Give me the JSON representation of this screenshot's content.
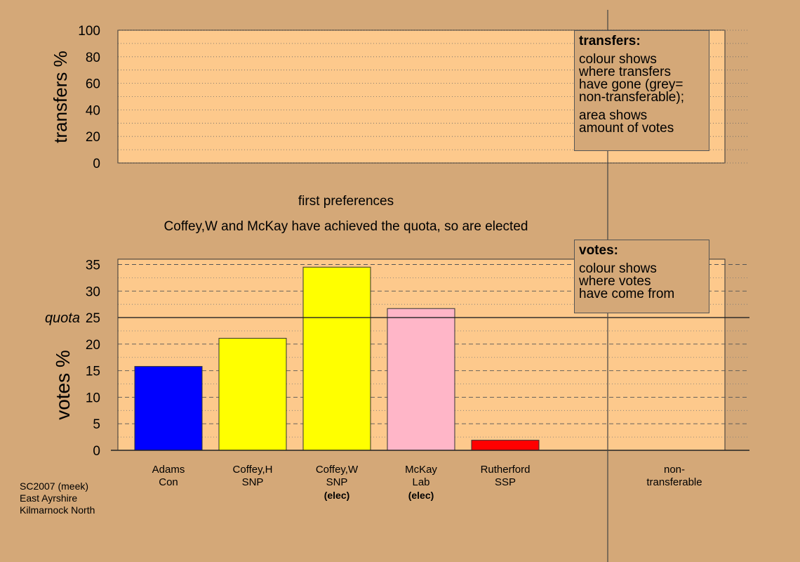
{
  "chart_data": [
    {
      "type": "bar",
      "ylabel": "transfers %",
      "ylim": [
        0,
        100
      ],
      "yticks": [
        0,
        20,
        40,
        60,
        80,
        100
      ],
      "grid": true,
      "categories": [],
      "values": []
    },
    {
      "type": "bar",
      "title": "first preferences",
      "subtitle": "Coffey,W and McKay have achieved the quota, so are elected",
      "ylabel": "votes %",
      "ylim": [
        0,
        36
      ],
      "yticks": [
        0,
        5,
        10,
        15,
        20,
        25,
        30,
        35
      ],
      "quota": 25,
      "quota_label": "quota",
      "grid": true,
      "categories": [
        {
          "name": "Adams",
          "party": "Con",
          "elected": ""
        },
        {
          "name": "Coffey,H",
          "party": "SNP",
          "elected": ""
        },
        {
          "name": "Coffey,W",
          "party": "SNP",
          "elected": "(elec)"
        },
        {
          "name": "McKay",
          "party": "Lab",
          "elected": "(elec)"
        },
        {
          "name": "Rutherford",
          "party": "SSP",
          "elected": ""
        }
      ],
      "values": [
        15.8,
        21.1,
        34.5,
        26.7,
        1.9
      ],
      "colors": [
        "#0000ff",
        "#ffff00",
        "#ffff00",
        "#ffb6c8",
        "#ff0000"
      ],
      "nontransferable_label": [
        "non-",
        "transferable"
      ]
    }
  ],
  "legends": {
    "transfers": {
      "title": "transfers:",
      "lines": [
        "colour shows",
        "where transfers",
        "have gone (grey=",
        "non-transferable);"
      ],
      "lines2": [
        "area shows",
        "amount of votes"
      ]
    },
    "votes": {
      "title": "votes:",
      "lines": [
        "colour shows",
        "where votes",
        "have come from"
      ]
    }
  },
  "footer": [
    "SC2007 (meek)",
    "East Ayrshire",
    "Kilmarnock North"
  ],
  "colors": {
    "background": "#d4a878",
    "plot_bg": "#fdc98c"
  }
}
